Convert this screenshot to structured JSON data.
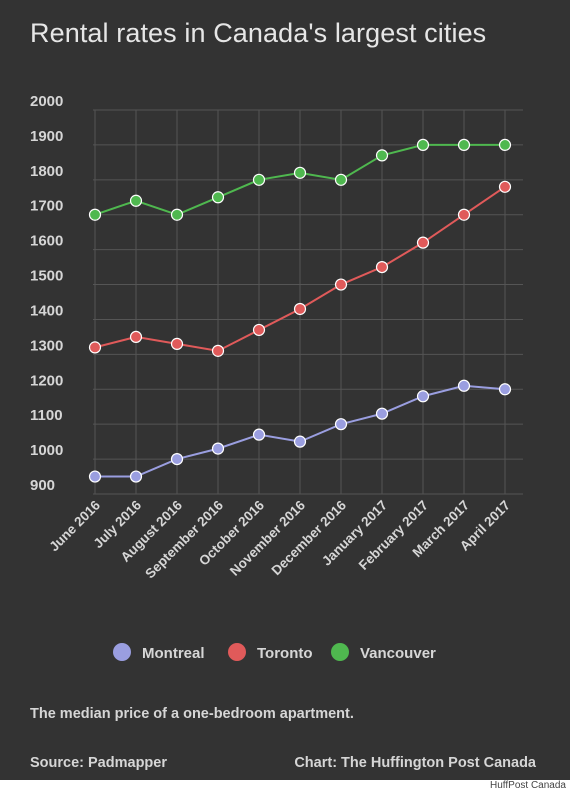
{
  "chart_data": {
    "type": "line",
    "title": "Rental rates in Canada's largest cities",
    "categories": [
      "June 2016",
      "July 2016",
      "August 2016",
      "September 2016",
      "October 2016",
      "November 2016",
      "December 2016",
      "January 2017",
      "February 2017",
      "March 2017",
      "April 2017"
    ],
    "ylim": [
      900,
      2000
    ],
    "yticks": [
      900,
      1000,
      1100,
      1200,
      1300,
      1400,
      1500,
      1600,
      1700,
      1800,
      1900,
      2000
    ],
    "grid": true,
    "legend": "bottom",
    "series": [
      {
        "name": "Montreal",
        "color": "#9a9ee0",
        "values": [
          950,
          950,
          1000,
          1030,
          1070,
          1050,
          1100,
          1130,
          1180,
          1210,
          1200
        ]
      },
      {
        "name": "Toronto",
        "color": "#e05a5a",
        "values": [
          1320,
          1350,
          1330,
          1310,
          1370,
          1430,
          1500,
          1550,
          1620,
          1700,
          1780
        ]
      },
      {
        "name": "Vancouver",
        "color": "#4fb84f",
        "values": [
          1700,
          1740,
          1700,
          1750,
          1800,
          1820,
          1800,
          1870,
          1900,
          1900,
          1900
        ]
      }
    ]
  },
  "caption": "The median price of a one-bedroom apartment.",
  "source": "Source: Padmapper",
  "credit": "Chart: The Huffington Post Canada",
  "brand": "HuffPost Canada"
}
